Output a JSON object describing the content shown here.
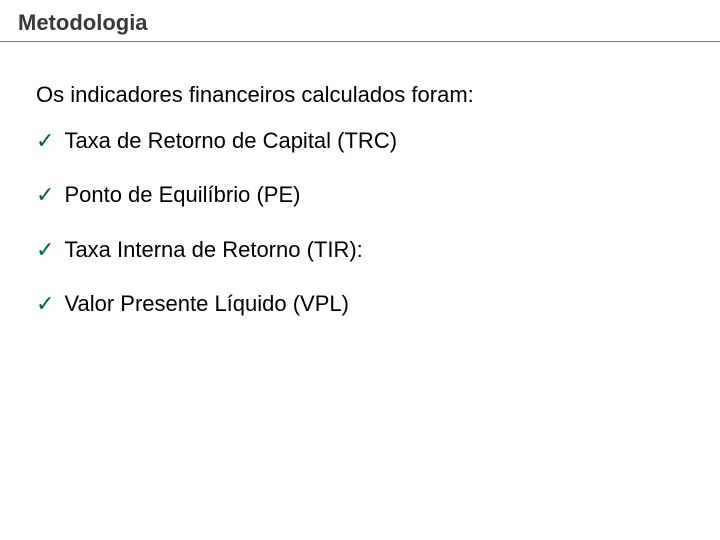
{
  "slide": {
    "title": "Metodologia",
    "intro": "Os indicadores financeiros calculados foram:",
    "check_color": "#006633",
    "title_color": "#3b3838",
    "text_color": "#000000",
    "underline_color": "#7a7a7a",
    "background_color": "#ffffff",
    "title_fontsize": 22,
    "body_fontsize": 22,
    "items": [
      {
        "label": "Taxa de Retorno de Capital (TRC)"
      },
      {
        "label": "Ponto de Equilíbrio (PE)"
      },
      {
        "label": "Taxa Interna de Retorno (TIR):"
      },
      {
        "label": "Valor Presente Líquido (VPL)"
      }
    ]
  }
}
